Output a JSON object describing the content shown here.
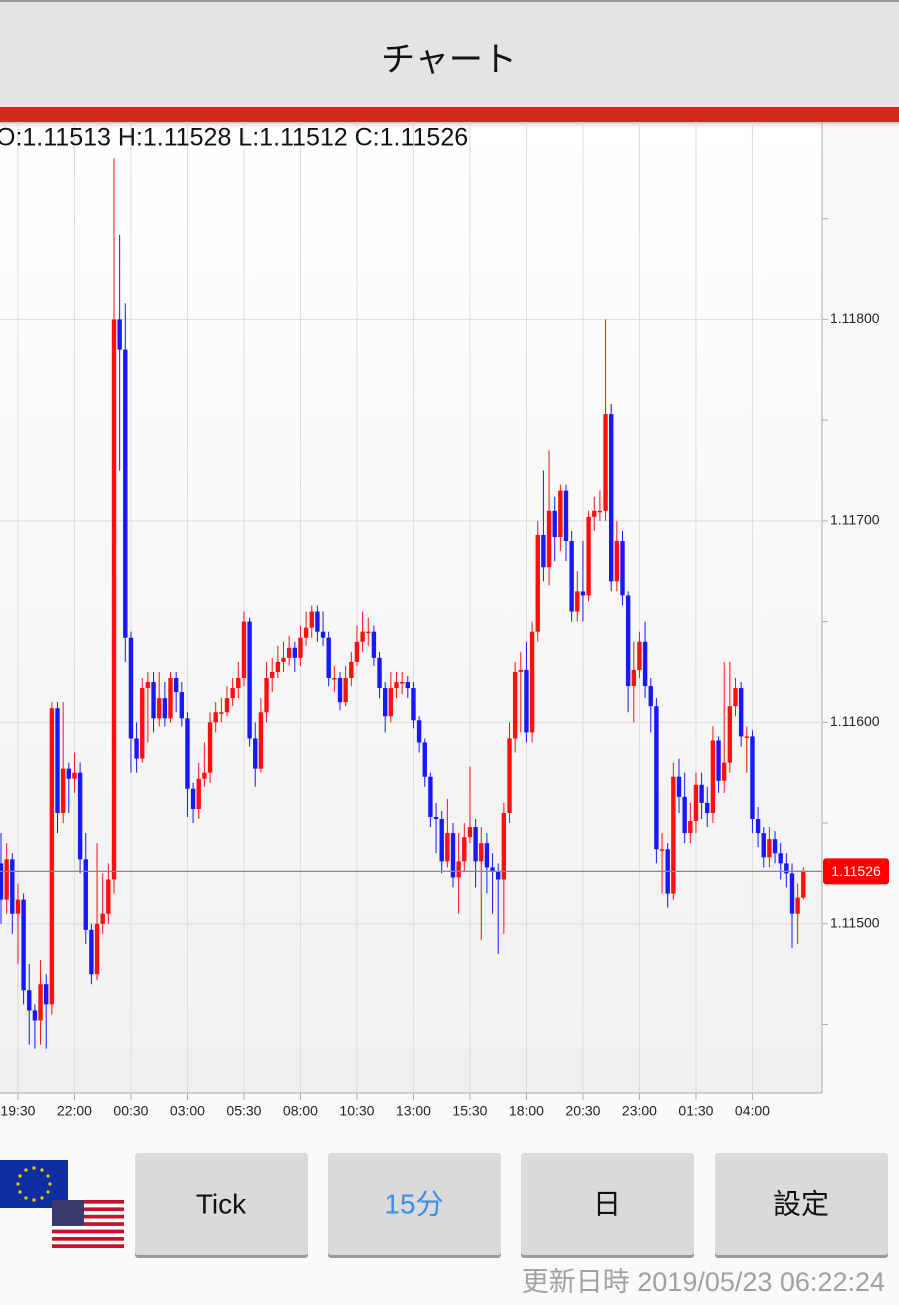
{
  "header": {
    "title": "チャート"
  },
  "buttons": [
    "Tick",
    "15分",
    "日",
    "設定"
  ],
  "selected_button": 1,
  "footer": "更新日時 2019/05/23 06:22:24",
  "chart_data": {
    "type": "candlestick",
    "ohlc_text": "O:1.11513 H:1.11528 L:1.11512 C:1.11526",
    "up_color": "#ff1010",
    "down_color": "#1818ff",
    "grid": true,
    "ylim": [
      1.11416,
      1.11898
    ],
    "yticks": [
      {
        "value": 1.118,
        "label": "1.11800"
      },
      {
        "value": 1.117,
        "label": "1.11700"
      },
      {
        "value": 1.116,
        "label": "1.11600"
      },
      {
        "value": 1.115,
        "label": "1.11500"
      }
    ],
    "yminor_ticks": [
      1.1185,
      1.1175,
      1.1165,
      1.1155,
      1.1145
    ],
    "last_price": 1.11526,
    "categories": [
      null,
      null,
      null,
      "19:30",
      null,
      null,
      null,
      null,
      null,
      null,
      null,
      null,
      null,
      "22:00",
      null,
      null,
      null,
      null,
      null,
      null,
      null,
      null,
      null,
      "00:30",
      null,
      null,
      null,
      null,
      null,
      null,
      null,
      null,
      null,
      "03:00",
      null,
      null,
      null,
      null,
      null,
      null,
      null,
      null,
      null,
      "05:30",
      null,
      null,
      null,
      null,
      null,
      null,
      null,
      null,
      null,
      "08:00",
      null,
      null,
      null,
      null,
      null,
      null,
      null,
      null,
      null,
      "10:30",
      null,
      null,
      null,
      null,
      null,
      null,
      null,
      null,
      null,
      "13:00",
      null,
      null,
      null,
      null,
      null,
      null,
      null,
      null,
      null,
      "15:30",
      null,
      null,
      null,
      null,
      null,
      null,
      null,
      null,
      null,
      "18:00",
      null,
      null,
      null,
      null,
      null,
      null,
      null,
      null,
      null,
      "20:30",
      null,
      null,
      null,
      null,
      null,
      null,
      null,
      null,
      null,
      "23:00",
      null,
      null,
      null,
      null,
      null,
      null,
      null,
      null,
      null,
      "01:30",
      null,
      null,
      null,
      null,
      null,
      null,
      null,
      null,
      null,
      "04:00",
      null,
      null,
      null,
      null,
      null,
      null,
      null,
      null,
      null
    ],
    "open": [
      1.1153,
      1.11512,
      1.11532,
      1.11505,
      1.11512,
      1.11467,
      1.11457,
      1.11452,
      1.1147,
      1.1146,
      1.11607,
      1.11555,
      1.11577,
      1.11572,
      1.11575,
      1.11532,
      1.11497,
      1.11475,
      1.115,
      1.11505,
      1.11522,
      1.118,
      1.11785,
      1.11642,
      1.11592,
      1.11582,
      1.11617,
      1.1162,
      1.11602,
      1.11612,
      1.11602,
      1.11622,
      1.11615,
      1.11602,
      1.11567,
      1.11557,
      1.11572,
      1.11575,
      1.116,
      1.11605,
      1.11605,
      1.11612,
      1.11617,
      1.11622,
      1.1165,
      1.11592,
      1.11577,
      1.11605,
      1.11622,
      1.11625,
      1.1163,
      1.11632,
      1.11637,
      1.11632,
      1.11642,
      1.11647,
      1.11655,
      1.11645,
      1.11642,
      1.11622,
      1.11622,
      1.1161,
      1.11622,
      1.1163,
      1.1164,
      1.11645,
      1.11645,
      1.11632,
      1.11617,
      1.11603,
      1.11617,
      1.1162,
      1.1162,
      1.11617,
      1.11601,
      1.1159,
      1.11573,
      1.11553,
      1.11552,
      1.11531,
      1.11545,
      1.11523,
      1.11531,
      1.11543,
      1.11548,
      1.11531,
      1.1154,
      1.11528,
      1.11526,
      1.11522,
      1.11555,
      1.11592,
      1.11625,
      1.11626,
      1.11595,
      1.11645,
      1.11693,
      1.11677,
      1.11705,
      1.11692,
      1.11715,
      1.1169,
      1.11655,
      1.11665,
      1.11663,
      1.11702,
      1.11705,
      1.11705,
      1.11753,
      1.1167,
      1.1169,
      1.11663,
      1.11618,
      1.11626,
      1.1164,
      1.11618,
      1.11608,
      1.11537,
      1.11537,
      1.11515,
      1.11573,
      1.11563,
      1.11545,
      1.11551,
      1.11569,
      1.1156,
      1.11555,
      1.11591,
      1.11571,
      1.1158,
      1.11608,
      1.11617,
      1.11593,
      1.11593,
      1.11552,
      1.11545,
      1.11533,
      1.11542,
      1.11535,
      1.1153,
      1.11525,
      1.11505,
      1.11513
    ],
    "high": [
      1.11545,
      1.1154,
      1.11535,
      1.1152,
      1.11515,
      1.1148,
      1.1146,
      1.11482,
      1.11475,
      1.1161,
      1.1161,
      1.1161,
      1.1158,
      1.11585,
      1.1158,
      1.11545,
      1.115,
      1.1154,
      1.11525,
      1.1153,
      1.1188,
      1.11842,
      1.11808,
      1.11645,
      1.116,
      1.11622,
      1.11625,
      1.11625,
      1.11625,
      1.1162,
      1.11625,
      1.11625,
      1.1162,
      1.11605,
      1.1157,
      1.1158,
      1.1159,
      1.11605,
      1.1161,
      1.11612,
      1.11618,
      1.11622,
      1.1163,
      1.11655,
      1.11652,
      1.116,
      1.11612,
      1.1163,
      1.11632,
      1.11638,
      1.1164,
      1.11643,
      1.1164,
      1.11648,
      1.11655,
      1.11658,
      1.11658,
      1.11655,
      1.11645,
      1.11628,
      1.11625,
      1.11628,
      1.11635,
      1.11648,
      1.11655,
      1.11652,
      1.11648,
      1.11635,
      1.1162,
      1.11625,
      1.11625,
      1.11625,
      1.11623,
      1.1162,
      1.11603,
      1.11592,
      1.11575,
      1.1156,
      1.11556,
      1.11562,
      1.1155,
      1.11545,
      1.1155,
      1.11578,
      1.11552,
      1.11548,
      1.11545,
      1.11535,
      1.1153,
      1.1156,
      1.116,
      1.1163,
      1.11635,
      1.1164,
      1.1165,
      1.117,
      1.11725,
      1.11735,
      1.11712,
      1.11718,
      1.11718,
      1.11695,
      1.11675,
      1.1169,
      1.11705,
      1.11712,
      1.11715,
      1.118,
      1.11758,
      1.117,
      1.11695,
      1.11665,
      1.1164,
      1.11645,
      1.1165,
      1.11622,
      1.11612,
      1.11545,
      1.1154,
      1.1158,
      1.11582,
      1.11575,
      1.1156,
      1.11575,
      1.11575,
      1.11568,
      1.11598,
      1.11593,
      1.1163,
      1.1163,
      1.11622,
      1.1162,
      1.11598,
      1.11596,
      1.11558,
      1.11548,
      1.11548,
      1.11546,
      1.1154,
      1.11535,
      1.1153,
      1.1152,
      1.11528
    ],
    "low": [
      1.115,
      1.11505,
      1.11495,
      1.1148,
      1.1146,
      1.1144,
      1.11438,
      1.1144,
      1.11438,
      1.11455,
      1.11545,
      1.1155,
      1.11555,
      1.11565,
      1.11525,
      1.1149,
      1.1147,
      1.11472,
      1.11495,
      1.115,
      1.11515,
      1.11725,
      1.1163,
      1.11575,
      1.11575,
      1.1158,
      1.1159,
      1.11595,
      1.11598,
      1.11598,
      1.116,
      1.11605,
      1.11598,
      1.11553,
      1.1155,
      1.11552,
      1.11568,
      1.1157,
      1.11595,
      1.116,
      1.11603,
      1.11608,
      1.11612,
      1.11618,
      1.11588,
      1.11568,
      1.11575,
      1.116,
      1.11615,
      1.11622,
      1.11625,
      1.11628,
      1.11625,
      1.11628,
      1.11638,
      1.11642,
      1.1164,
      1.11638,
      1.11618,
      1.11615,
      1.11606,
      1.11608,
      1.11618,
      1.11628,
      1.11635,
      1.11638,
      1.11628,
      1.11612,
      1.11595,
      1.116,
      1.11612,
      1.11614,
      1.11612,
      1.11597,
      1.11585,
      1.11568,
      1.11548,
      1.11535,
      1.11525,
      1.11528,
      1.11518,
      1.11505,
      1.11526,
      1.1154,
      1.11518,
      1.11492,
      1.11515,
      1.11505,
      1.11485,
      1.11495,
      1.1155,
      1.11585,
      1.11595,
      1.1159,
      1.1159,
      1.1164,
      1.1167,
      1.11668,
      1.1168,
      1.11685,
      1.1168,
      1.1165,
      1.1165,
      1.1165,
      1.1166,
      1.11695,
      1.117,
      1.117,
      1.11665,
      1.11665,
      1.11658,
      1.11605,
      1.116,
      1.11622,
      1.11612,
      1.11595,
      1.1153,
      1.11515,
      1.11508,
      1.11512,
      1.11555,
      1.1154,
      1.1154,
      1.11545,
      1.11552,
      1.11548,
      1.1155,
      1.11565,
      1.11565,
      1.11575,
      1.11603,
      1.11588,
      1.11575,
      1.11545,
      1.11538,
      1.11528,
      1.11528,
      1.1153,
      1.11522,
      1.11518,
      1.11488,
      1.1149,
      1.11512
    ],
    "close": [
      1.11512,
      1.11532,
      1.11505,
      1.11512,
      1.11467,
      1.11457,
      1.11452,
      1.1147,
      1.1146,
      1.11607,
      1.11555,
      1.11577,
      1.11572,
      1.11575,
      1.11532,
      1.11497,
      1.11475,
      1.115,
      1.11505,
      1.11522,
      1.118,
      1.11785,
      1.11642,
      1.11592,
      1.11582,
      1.11617,
      1.1162,
      1.11602,
      1.11612,
      1.11602,
      1.11622,
      1.11615,
      1.11602,
      1.11567,
      1.11557,
      1.11572,
      1.11575,
      1.116,
      1.11605,
      1.11605,
      1.11612,
      1.11617,
      1.11622,
      1.1165,
      1.11592,
      1.11577,
      1.11605,
      1.11622,
      1.11625,
      1.1163,
      1.11632,
      1.11637,
      1.11632,
      1.11642,
      1.11647,
      1.11655,
      1.11645,
      1.11642,
      1.11622,
      1.11622,
      1.1161,
      1.11622,
      1.1163,
      1.1164,
      1.11645,
      1.11645,
      1.11632,
      1.11617,
      1.11603,
      1.11617,
      1.1162,
      1.1162,
      1.11617,
      1.11601,
      1.1159,
      1.11573,
      1.11553,
      1.11552,
      1.11531,
      1.11545,
      1.11523,
      1.11531,
      1.11543,
      1.11548,
      1.11531,
      1.1154,
      1.11528,
      1.11526,
      1.11522,
      1.11555,
      1.11592,
      1.11625,
      1.11626,
      1.11595,
      1.11645,
      1.11693,
      1.11677,
      1.11705,
      1.11692,
      1.11715,
      1.1169,
      1.11655,
      1.11665,
      1.11663,
      1.11702,
      1.11705,
      1.11705,
      1.11753,
      1.1167,
      1.1169,
      1.11663,
      1.11618,
      1.11626,
      1.1164,
      1.11618,
      1.11608,
      1.11537,
      1.11537,
      1.11515,
      1.11573,
      1.11563,
      1.11545,
      1.11551,
      1.11569,
      1.1156,
      1.11555,
      1.11591,
      1.11571,
      1.1158,
      1.11608,
      1.11617,
      1.11593,
      1.11593,
      1.11552,
      1.11545,
      1.11533,
      1.11542,
      1.11535,
      1.1153,
      1.11525,
      1.11505,
      1.11513,
      1.11526
    ]
  }
}
